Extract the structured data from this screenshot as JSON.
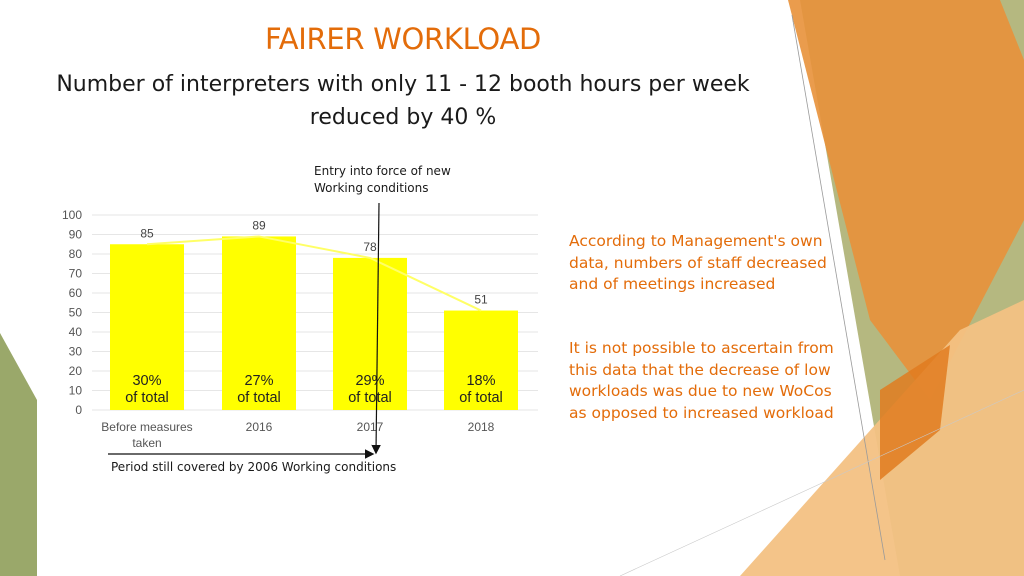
{
  "slide": {
    "title": "FAIRER WORKLOAD",
    "subtitle": "Number of interpreters with only 11 - 12 booth hours per week reduced by 40 %",
    "annotation_top": "Entry into force of new Working conditions",
    "annotation_bottom": "Period still covered by 2006 Working conditions",
    "side_text_1": "According to Management's own data, numbers of staff decreased and of meetings increased",
    "side_text_2": "It is not possible to ascertain from this data that the decrease of low workloads was due to new WoCos as opposed to increased workload"
  },
  "colors": {
    "title": "#e36c0a",
    "bar": "#ffff00",
    "trend_line": "#ffff66",
    "deco_orange": "#e8913a",
    "deco_olive": "#9aa86a"
  },
  "chart_data": {
    "type": "bar",
    "categories": [
      "Before measures taken",
      "2016",
      "2017",
      "2018"
    ],
    "values": [
      85,
      89,
      78,
      51
    ],
    "bar_labels": [
      "30% of total",
      "27% of total",
      "29% of total",
      "18% of total"
    ],
    "yticks": [
      0,
      10,
      20,
      30,
      40,
      50,
      60,
      70,
      80,
      90,
      100
    ],
    "ylim": [
      0,
      100
    ],
    "grid": true,
    "trend_line": true
  }
}
